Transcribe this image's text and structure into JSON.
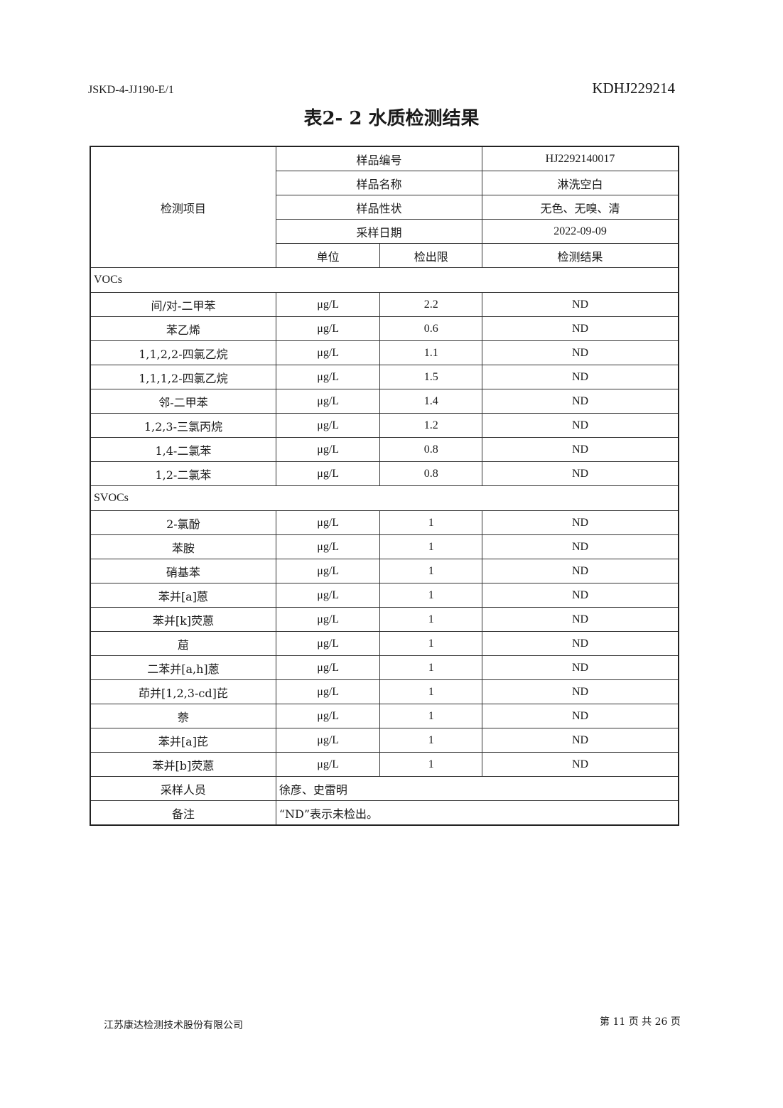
{
  "header": {
    "doc_code": "JSKD-4-JJ190-E/1",
    "report_no": "KDHJ229214",
    "title": "表2- 2 水质检测结果"
  },
  "table": {
    "item_header": "检测项目",
    "meta": [
      {
        "label": "样品编号",
        "value": "HJ2292140017"
      },
      {
        "label": "样品名称",
        "value": "淋洗空白"
      },
      {
        "label": "样品性状",
        "value": "无色、无嗅、清"
      },
      {
        "label": "采样日期",
        "value": "2022-09-09"
      }
    ],
    "columns": {
      "unit": "单位",
      "limit": "检出限",
      "result": "检测结果"
    },
    "sections": [
      {
        "name": "VOCs",
        "rows": [
          {
            "item": "间/对-二甲苯",
            "unit": "μg/L",
            "limit": "2.2",
            "result": "ND"
          },
          {
            "item": "苯乙烯",
            "unit": "μg/L",
            "limit": "0.6",
            "result": "ND"
          },
          {
            "item": "1,1,2,2-四氯乙烷",
            "unit": "μg/L",
            "limit": "1.1",
            "result": "ND"
          },
          {
            "item": "1,1,1,2-四氯乙烷",
            "unit": "μg/L",
            "limit": "1.5",
            "result": "ND"
          },
          {
            "item": "邻-二甲苯",
            "unit": "μg/L",
            "limit": "1.4",
            "result": "ND"
          },
          {
            "item": "1,2,3-三氯丙烷",
            "unit": "μg/L",
            "limit": "1.2",
            "result": "ND"
          },
          {
            "item": "1,4-二氯苯",
            "unit": "μg/L",
            "limit": "0.8",
            "result": "ND"
          },
          {
            "item": "1,2-二氯苯",
            "unit": "μg/L",
            "limit": "0.8",
            "result": "ND"
          }
        ]
      },
      {
        "name": "SVOCs",
        "rows": [
          {
            "item": "2-氯酚",
            "unit": "μg/L",
            "limit": "1",
            "result": "ND"
          },
          {
            "item": "苯胺",
            "unit": "μg/L",
            "limit": "1",
            "result": "ND"
          },
          {
            "item": "硝基苯",
            "unit": "μg/L",
            "limit": "1",
            "result": "ND"
          },
          {
            "item": "苯并[a]蒽",
            "unit": "μg/L",
            "limit": "1",
            "result": "ND"
          },
          {
            "item": "苯并[k]荧蒽",
            "unit": "μg/L",
            "limit": "1",
            "result": "ND"
          },
          {
            "item": "䓛",
            "unit": "μg/L",
            "limit": "1",
            "result": "ND"
          },
          {
            "item": "二苯并[a,h]蒽",
            "unit": "μg/L",
            "limit": "1",
            "result": "ND"
          },
          {
            "item": "茚并[1,2,3-cd]芘",
            "unit": "μg/L",
            "limit": "1",
            "result": "ND"
          },
          {
            "item": "萘",
            "unit": "μg/L",
            "limit": "1",
            "result": "ND"
          },
          {
            "item": "苯并[a]芘",
            "unit": "μg/L",
            "limit": "1",
            "result": "ND"
          },
          {
            "item": "苯并[b]荧蒽",
            "unit": "μg/L",
            "limit": "1",
            "result": "ND"
          }
        ]
      }
    ],
    "sampler": {
      "label": "采样人员",
      "value": "徐彦、史雷明"
    },
    "remark": {
      "label": "备注",
      "value": "“ND”表示未检出。"
    }
  },
  "footer": {
    "company": "江苏康达检测技术股份有限公司",
    "page": "第 11 页 共 26 页"
  }
}
